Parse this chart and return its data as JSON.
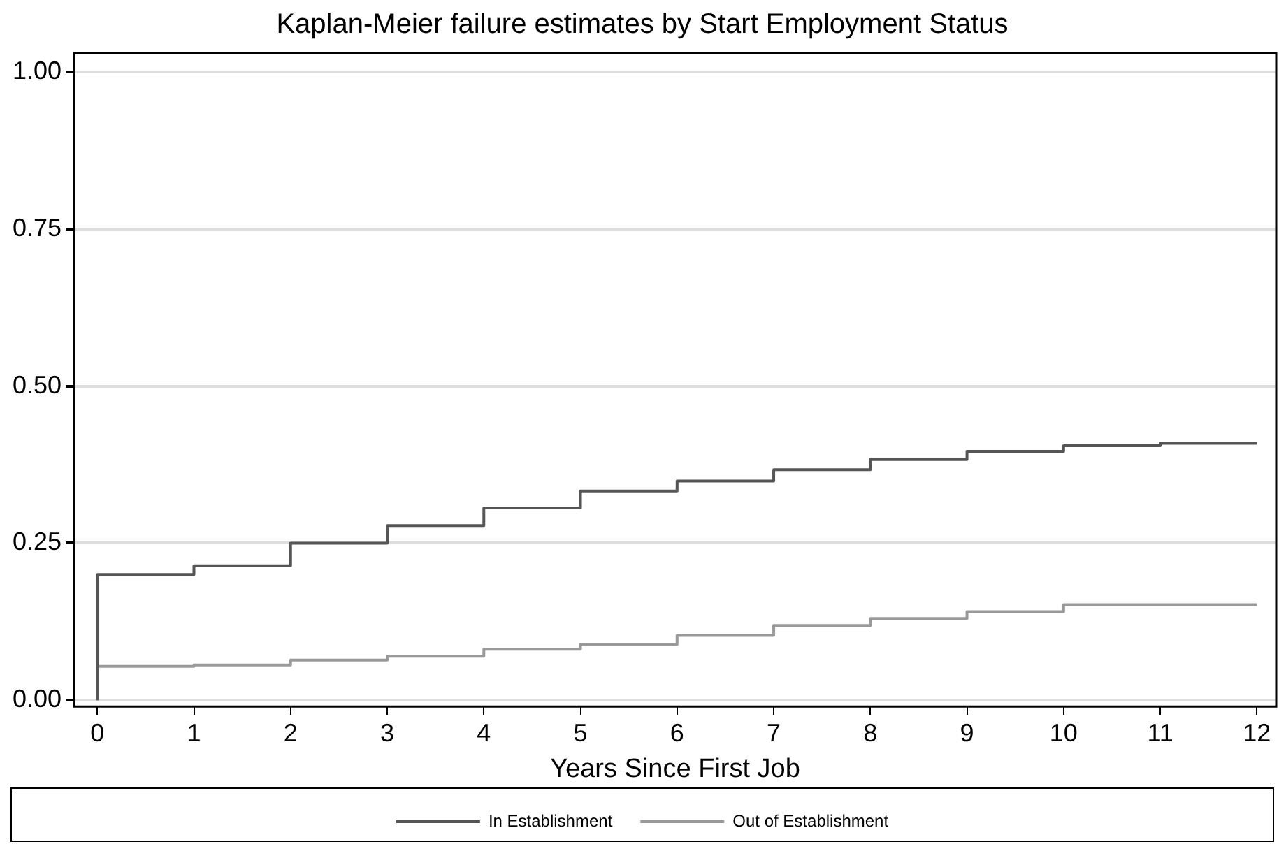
{
  "chart_data": {
    "type": "step",
    "title": "Kaplan-Meier failure estimates by Start Employment Status",
    "xlabel": "Years Since First Job",
    "x": [
      0,
      0,
      1,
      2,
      3,
      4,
      5,
      6,
      7,
      8,
      9,
      10,
      11,
      12
    ],
    "series": [
      {
        "name": "In Establishment",
        "color": "#555555",
        "values": [
          0,
          0.2,
          0.214,
          0.25,
          0.278,
          0.306,
          0.333,
          0.349,
          0.367,
          0.383,
          0.396,
          0.405,
          0.409,
          0.409
        ]
      },
      {
        "name": "Out of Establishment",
        "color": "#999999",
        "values": [
          0,
          0.054,
          0.056,
          0.064,
          0.07,
          0.081,
          0.089,
          0.103,
          0.119,
          0.13,
          0.141,
          0.152,
          0.152,
          0.152
        ]
      }
    ],
    "xlim": [
      -0.24,
      12.2
    ],
    "xticks": [
      0,
      1,
      2,
      3,
      4,
      5,
      6,
      7,
      8,
      9,
      10,
      11,
      12
    ],
    "ylim": [
      -0.01,
      1.03
    ],
    "yticks": [
      {
        "value": 0,
        "label": "0.00"
      },
      {
        "value": 0.25,
        "label": "0.25"
      },
      {
        "value": 0.5,
        "label": "0.50"
      },
      {
        "value": 0.75,
        "label": "0.75"
      },
      {
        "value": 1,
        "label": "1.00"
      }
    ],
    "grid": "y",
    "legend": "bottom",
    "marker": "none",
    "line_style": "solid"
  }
}
